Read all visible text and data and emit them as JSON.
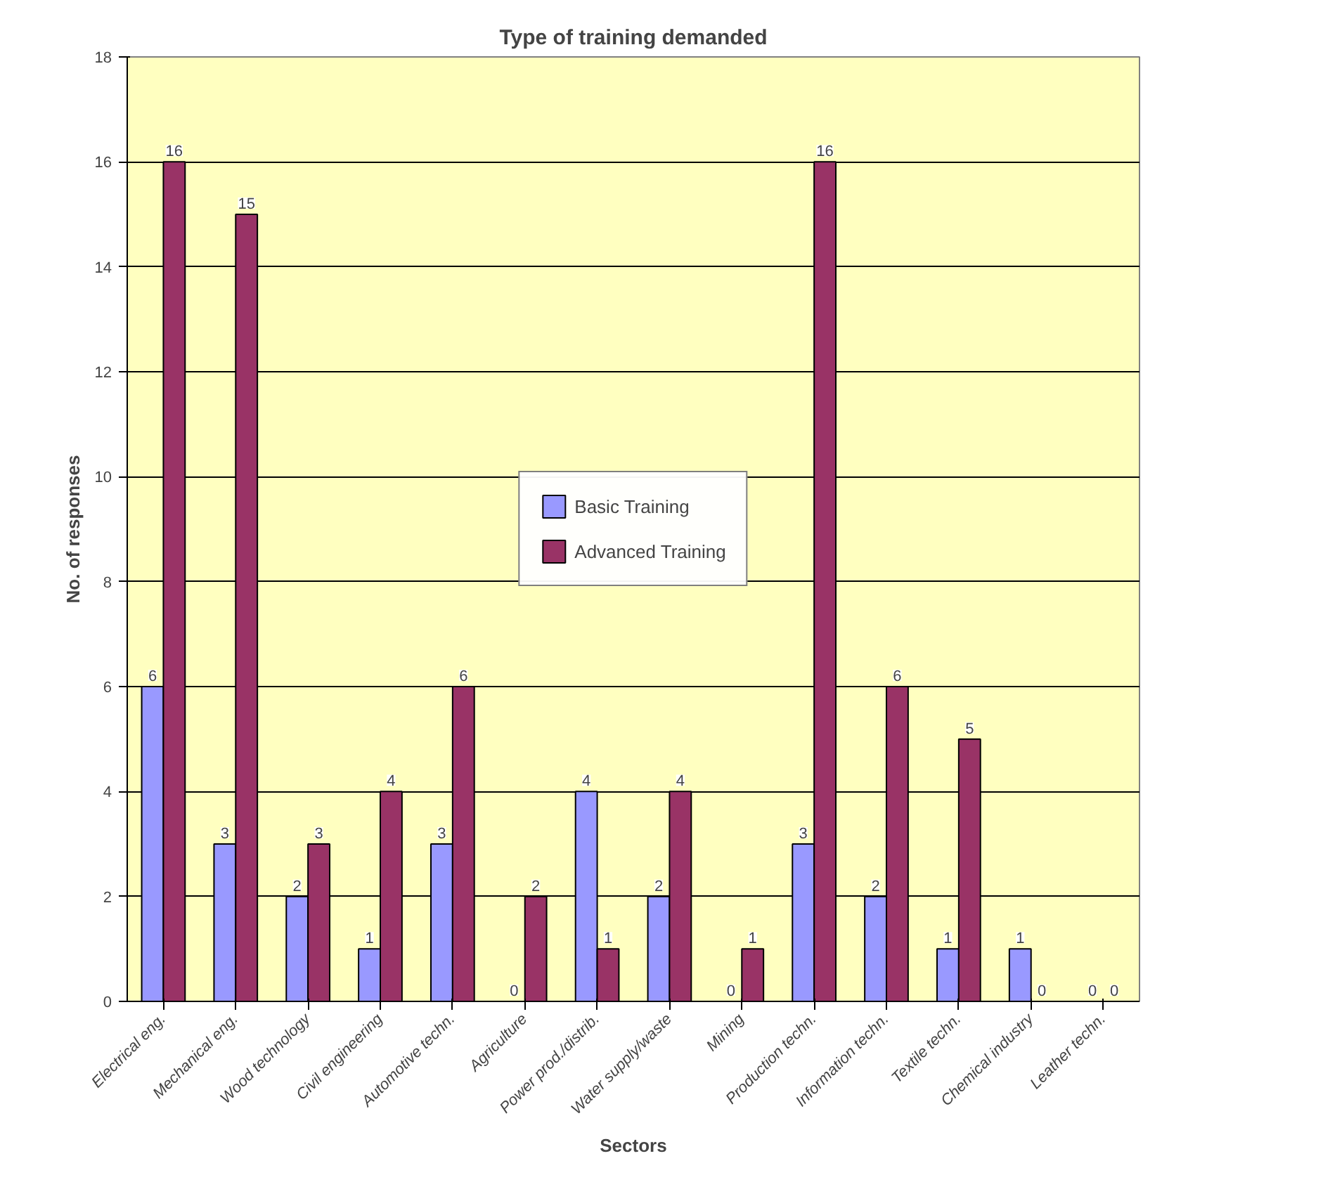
{
  "chart_data": {
    "type": "bar",
    "title": "Type of training demanded",
    "xlabel": "Sectors",
    "ylabel": "No. of responses",
    "categories": [
      "Electrical eng.",
      "Mechanical eng.",
      "Wood technology",
      "Civil engineering",
      "Automotive techn.",
      "Agriculture",
      "Power prod./distrib.",
      "Water supply/waste",
      "Mining",
      "Production techn.",
      "Information techn.",
      "Textile techn.",
      "Chemical industry",
      "Leather techn."
    ],
    "series": [
      {
        "name": "Basic Training",
        "color": "#9999ff",
        "values": [
          6,
          3,
          2,
          1,
          3,
          0,
          4,
          2,
          0,
          3,
          2,
          1,
          1,
          0
        ]
      },
      {
        "name": "Advanced Training",
        "color": "#993366",
        "values": [
          16,
          15,
          3,
          4,
          6,
          2,
          1,
          4,
          1,
          16,
          6,
          5,
          0,
          0
        ]
      }
    ],
    "ylim": [
      0,
      18
    ],
    "yticks": [
      0,
      2,
      4,
      6,
      8,
      10,
      12,
      14,
      16,
      18
    ],
    "grid": "y",
    "legend": "center",
    "data_labels": true
  }
}
